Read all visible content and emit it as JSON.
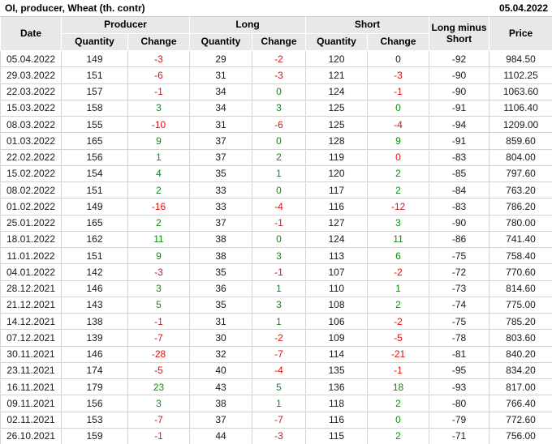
{
  "title": "OI, producer, Wheat (th. contr)",
  "report_date": "05.04.2022",
  "colors": {
    "positive": "#0c8f0c",
    "negative": "#dd1111",
    "neutral": "#1a1a1a",
    "header_bg": "#e8e8e8",
    "grid_line": "#d4d4d4",
    "header_separator": "#ffffff"
  },
  "table": {
    "headers": {
      "date": "Date",
      "producer": "Producer",
      "long": "Long",
      "short": "Short",
      "quantity": "Quantity",
      "change": "Change",
      "long_minus_short": "Long minus Short",
      "price": "Price"
    },
    "rows": [
      {
        "date": "05.04.2022",
        "producer_qty": "149",
        "producer_chg": {
          "v": "-3",
          "s": "negative"
        },
        "long_qty": "29",
        "long_chg": {
          "v": "-2",
          "s": "negative"
        },
        "short_qty": "120",
        "short_chg": {
          "v": "0",
          "s": "neutral"
        },
        "lms": "-92",
        "price": "984.50"
      },
      {
        "date": "29.03.2022",
        "producer_qty": "151",
        "producer_chg": {
          "v": "-6",
          "s": "negative"
        },
        "long_qty": "31",
        "long_chg": {
          "v": "-3",
          "s": "negative"
        },
        "short_qty": "121",
        "short_chg": {
          "v": "-3",
          "s": "negative"
        },
        "lms": "-90",
        "price": "1102.25"
      },
      {
        "date": "22.03.2022",
        "producer_qty": "157",
        "producer_chg": {
          "v": "-1",
          "s": "negative"
        },
        "long_qty": "34",
        "long_chg": {
          "v": "0",
          "s": "positive"
        },
        "short_qty": "124",
        "short_chg": {
          "v": "-1",
          "s": "negative"
        },
        "lms": "-90",
        "price": "1063.60"
      },
      {
        "date": "15.03.2022",
        "producer_qty": "158",
        "producer_chg": {
          "v": "3",
          "s": "positive"
        },
        "long_qty": "34",
        "long_chg": {
          "v": "3",
          "s": "positive"
        },
        "short_qty": "125",
        "short_chg": {
          "v": "0",
          "s": "positive"
        },
        "lms": "-91",
        "price": "1106.40"
      },
      {
        "date": "08.03.2022",
        "producer_qty": "155",
        "producer_chg": {
          "v": "-10",
          "s": "negative"
        },
        "long_qty": "31",
        "long_chg": {
          "v": "-6",
          "s": "negative"
        },
        "short_qty": "125",
        "short_chg": {
          "v": "-4",
          "s": "negative"
        },
        "lms": "-94",
        "price": "1209.00"
      },
      {
        "date": "01.03.2022",
        "producer_qty": "165",
        "producer_chg": {
          "v": "9",
          "s": "positive"
        },
        "long_qty": "37",
        "long_chg": {
          "v": "0",
          "s": "positive"
        },
        "short_qty": "128",
        "short_chg": {
          "v": "9",
          "s": "positive"
        },
        "lms": "-91",
        "price": "859.60"
      },
      {
        "date": "22.02.2022",
        "producer_qty": "156",
        "producer_chg": {
          "v": "1",
          "s": "positive"
        },
        "long_qty": "37",
        "long_chg": {
          "v": "2",
          "s": "positive"
        },
        "short_qty": "119",
        "short_chg": {
          "v": "0",
          "s": "negative"
        },
        "lms": "-83",
        "price": "804.00"
      },
      {
        "date": "15.02.2022",
        "producer_qty": "154",
        "producer_chg": {
          "v": "4",
          "s": "positive"
        },
        "long_qty": "35",
        "long_chg": {
          "v": "1",
          "s": "positive"
        },
        "short_qty": "120",
        "short_chg": {
          "v": "2",
          "s": "positive"
        },
        "lms": "-85",
        "price": "797.60"
      },
      {
        "date": "08.02.2022",
        "producer_qty": "151",
        "producer_chg": {
          "v": "2",
          "s": "positive"
        },
        "long_qty": "33",
        "long_chg": {
          "v": "0",
          "s": "positive"
        },
        "short_qty": "117",
        "short_chg": {
          "v": "2",
          "s": "positive"
        },
        "lms": "-84",
        "price": "763.20"
      },
      {
        "date": "01.02.2022",
        "producer_qty": "149",
        "producer_chg": {
          "v": "-16",
          "s": "negative"
        },
        "long_qty": "33",
        "long_chg": {
          "v": "-4",
          "s": "negative"
        },
        "short_qty": "116",
        "short_chg": {
          "v": "-12",
          "s": "negative"
        },
        "lms": "-83",
        "price": "786.20"
      },
      {
        "date": "25.01.2022",
        "producer_qty": "165",
        "producer_chg": {
          "v": "2",
          "s": "positive"
        },
        "long_qty": "37",
        "long_chg": {
          "v": "-1",
          "s": "negative"
        },
        "short_qty": "127",
        "short_chg": {
          "v": "3",
          "s": "positive"
        },
        "lms": "-90",
        "price": "780.00"
      },
      {
        "date": "18.01.2022",
        "producer_qty": "162",
        "producer_chg": {
          "v": "11",
          "s": "positive"
        },
        "long_qty": "38",
        "long_chg": {
          "v": "0",
          "s": "positive"
        },
        "short_qty": "124",
        "short_chg": {
          "v": "11",
          "s": "positive"
        },
        "lms": "-86",
        "price": "741.40"
      },
      {
        "date": "11.01.2022",
        "producer_qty": "151",
        "producer_chg": {
          "v": "9",
          "s": "positive"
        },
        "long_qty": "38",
        "long_chg": {
          "v": "3",
          "s": "positive"
        },
        "short_qty": "113",
        "short_chg": {
          "v": "6",
          "s": "positive"
        },
        "lms": "-75",
        "price": "758.40"
      },
      {
        "date": "04.01.2022",
        "producer_qty": "142",
        "producer_chg": {
          "v": "-3",
          "s": "negative"
        },
        "long_qty": "35",
        "long_chg": {
          "v": "-1",
          "s": "negative"
        },
        "short_qty": "107",
        "short_chg": {
          "v": "-2",
          "s": "negative"
        },
        "lms": "-72",
        "price": "770.60"
      },
      {
        "date": "28.12.2021",
        "producer_qty": "146",
        "producer_chg": {
          "v": "3",
          "s": "positive"
        },
        "long_qty": "36",
        "long_chg": {
          "v": "1",
          "s": "positive"
        },
        "short_qty": "110",
        "short_chg": {
          "v": "1",
          "s": "positive"
        },
        "lms": "-73",
        "price": "814.60"
      },
      {
        "date": "21.12.2021",
        "producer_qty": "143",
        "producer_chg": {
          "v": "5",
          "s": "positive"
        },
        "long_qty": "35",
        "long_chg": {
          "v": "3",
          "s": "positive"
        },
        "short_qty": "108",
        "short_chg": {
          "v": "2",
          "s": "positive"
        },
        "lms": "-74",
        "price": "775.00"
      },
      {
        "date": "14.12.2021",
        "producer_qty": "138",
        "producer_chg": {
          "v": "-1",
          "s": "negative"
        },
        "long_qty": "31",
        "long_chg": {
          "v": "1",
          "s": "positive"
        },
        "short_qty": "106",
        "short_chg": {
          "v": "-2",
          "s": "negative"
        },
        "lms": "-75",
        "price": "785.20"
      },
      {
        "date": "07.12.2021",
        "producer_qty": "139",
        "producer_chg": {
          "v": "-7",
          "s": "negative"
        },
        "long_qty": "30",
        "long_chg": {
          "v": "-2",
          "s": "negative"
        },
        "short_qty": "109",
        "short_chg": {
          "v": "-5",
          "s": "negative"
        },
        "lms": "-78",
        "price": "803.60"
      },
      {
        "date": "30.11.2021",
        "producer_qty": "146",
        "producer_chg": {
          "v": "-28",
          "s": "negative"
        },
        "long_qty": "32",
        "long_chg": {
          "v": "-7",
          "s": "negative"
        },
        "short_qty": "114",
        "short_chg": {
          "v": "-21",
          "s": "negative"
        },
        "lms": "-81",
        "price": "840.20"
      },
      {
        "date": "23.11.2021",
        "producer_qty": "174",
        "producer_chg": {
          "v": "-5",
          "s": "negative"
        },
        "long_qty": "40",
        "long_chg": {
          "v": "-4",
          "s": "negative"
        },
        "short_qty": "135",
        "short_chg": {
          "v": "-1",
          "s": "negative"
        },
        "lms": "-95",
        "price": "834.20"
      },
      {
        "date": "16.11.2021",
        "producer_qty": "179",
        "producer_chg": {
          "v": "23",
          "s": "positive"
        },
        "long_qty": "43",
        "long_chg": {
          "v": "5",
          "s": "positive"
        },
        "short_qty": "136",
        "short_chg": {
          "v": "18",
          "s": "positive"
        },
        "lms": "-93",
        "price": "817.00"
      },
      {
        "date": "09.11.2021",
        "producer_qty": "156",
        "producer_chg": {
          "v": "3",
          "s": "positive"
        },
        "long_qty": "38",
        "long_chg": {
          "v": "1",
          "s": "positive"
        },
        "short_qty": "118",
        "short_chg": {
          "v": "2",
          "s": "positive"
        },
        "lms": "-80",
        "price": "766.40"
      },
      {
        "date": "02.11.2021",
        "producer_qty": "153",
        "producer_chg": {
          "v": "-7",
          "s": "negative"
        },
        "long_qty": "37",
        "long_chg": {
          "v": "-7",
          "s": "negative"
        },
        "short_qty": "116",
        "short_chg": {
          "v": "0",
          "s": "positive"
        },
        "lms": "-79",
        "price": "772.60"
      },
      {
        "date": "26.10.2021",
        "producer_qty": "159",
        "producer_chg": {
          "v": "-1",
          "s": "negative"
        },
        "long_qty": "44",
        "long_chg": {
          "v": "-3",
          "s": "negative"
        },
        "short_qty": "115",
        "short_chg": {
          "v": "2",
          "s": "positive"
        },
        "lms": "-71",
        "price": "756.00"
      }
    ]
  }
}
